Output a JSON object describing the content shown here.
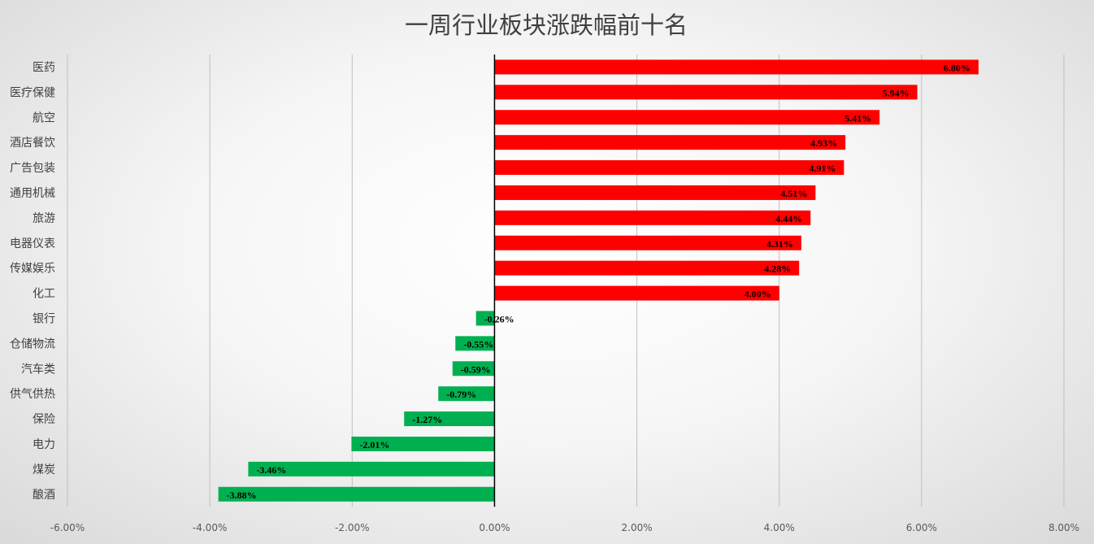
{
  "chart_data": {
    "type": "bar",
    "orientation": "horizontal",
    "title": "一周行业板块涨跌幅前十名",
    "categories": [
      "医药",
      "医疗保健",
      "航空",
      "酒店餐饮",
      "广告包装",
      "通用机械",
      "旅游",
      "电器仪表",
      "传媒娱乐",
      "化工",
      "银行",
      "仓储物流",
      "汽车类",
      "供气供热",
      "保险",
      "电力",
      "煤炭",
      "酿酒"
    ],
    "values": [
      6.8,
      5.94,
      5.41,
      4.93,
      4.91,
      4.51,
      4.44,
      4.31,
      4.28,
      4.0,
      -0.26,
      -0.55,
      -0.59,
      -0.79,
      -1.27,
      -2.01,
      -3.46,
      -3.88
    ],
    "value_labels": [
      "6.80%",
      "5.94%",
      "5.41%",
      "4.93%",
      "4.91%",
      "4.51%",
      "4.44%",
      "4.31%",
      "4.28%",
      "4.00%",
      "-0.26%",
      "-0.55%",
      "-0.59%",
      "-0.79%",
      "-1.27%",
      "-2.01%",
      "-3.46%",
      "-3.88%"
    ],
    "x_ticks": [
      -6,
      -4,
      -2,
      0,
      2,
      4,
      6,
      8
    ],
    "x_tick_labels": [
      "-6.00%",
      "-4.00%",
      "-2.00%",
      "0.00%",
      "2.00%",
      "4.00%",
      "6.00%",
      "8.00%"
    ],
    "xlim": [
      -6,
      8
    ],
    "xlabel": "",
    "ylabel": "",
    "grid": "vertical",
    "legend": "none",
    "colors": {
      "positive": "#ff0000",
      "negative": "#00b050",
      "axis": "#000000",
      "grid": "#bfbfbf"
    }
  }
}
